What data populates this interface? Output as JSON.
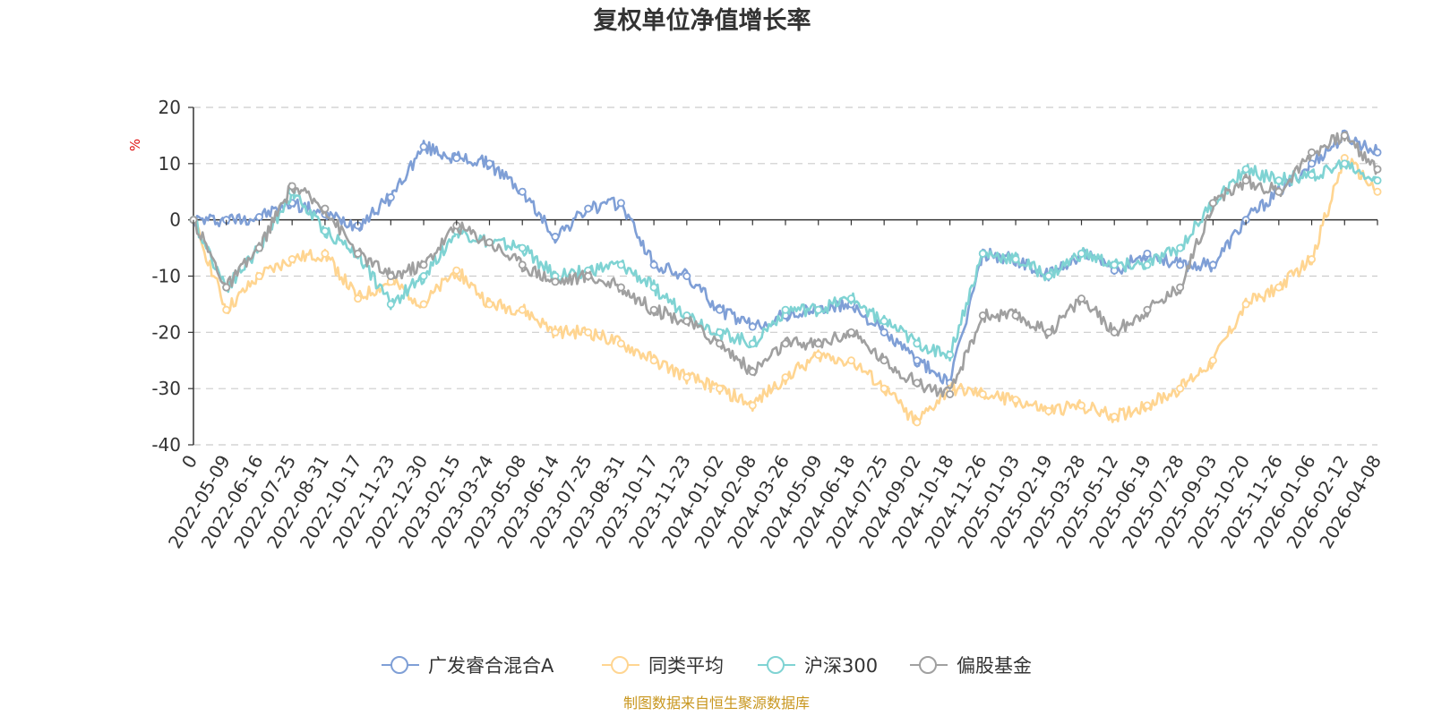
{
  "chart_data": {
    "type": "line",
    "title": "复权单位净值增长率",
    "ylabel": "%",
    "ylim": [
      -40,
      20
    ],
    "yticks": [
      "20",
      "10",
      "0",
      "-10",
      "-20",
      "-30",
      "-40"
    ],
    "x_tick_labels": [
      "0",
      "2022-05-09",
      "2022-06-16",
      "2022-07-25",
      "2022-08-31",
      "2022-10-17",
      "2022-11-23",
      "2022-12-30",
      "2023-02-15",
      "2023-03-24",
      "2023-05-08",
      "2023-06-14",
      "2023-07-25",
      "2023-08-31",
      "2023-10-17",
      "2023-11-23",
      "2024-01-02",
      "2024-02-08",
      "2024-03-26",
      "2024-05-09",
      "2024-06-18",
      "2024-07-25",
      "2024-09-02",
      "2024-10-18",
      "2024-11-26",
      "2025-01-03",
      "2025-02-19",
      "2025-03-28",
      "2025-05-12",
      "2025-06-19",
      "2025-07-28",
      "2025-09-03",
      "2025-10-20",
      "2025-11-26",
      "2026-01-06",
      "2026-02-12",
      "2026-04-08"
    ],
    "grid": true,
    "legend_position": "bottom",
    "x": [
      "0",
      "2022-05-09",
      "2022-06-16",
      "2022-07-25",
      "2022-08-31",
      "2022-10-17",
      "2022-11-23",
      "2022-12-30",
      "2023-02-15",
      "2023-03-24",
      "2023-05-08",
      "2023-06-14",
      "2023-07-25",
      "2023-08-31",
      "2023-10-17",
      "2023-11-23",
      "2024-01-02",
      "2024-02-08",
      "2024-03-26",
      "2024-05-09",
      "2024-06-18",
      "2024-07-25",
      "2024-09-02",
      "2024-10-18",
      "2024-11-26",
      "2025-01-03",
      "2025-02-19",
      "2025-03-28",
      "2025-05-12",
      "2025-06-19",
      "2025-07-28",
      "2025-09-03",
      "2025-10-20",
      "2025-11-26",
      "2026-01-06",
      "2026-02-12",
      "2026-04-08"
    ],
    "series": [
      {
        "name": "广发睿合混合A",
        "color": "#7f9fd6",
        "values": [
          0,
          0,
          0.5,
          3,
          1,
          -1,
          4,
          13,
          11,
          10,
          5,
          -3,
          2,
          3,
          -8,
          -10,
          -16,
          -19,
          -17,
          -16,
          -15,
          -20,
          -25,
          -29,
          -6,
          -7,
          -10,
          -6,
          -9,
          -6,
          -8,
          -8,
          0,
          5,
          10,
          15,
          12
        ]
      },
      {
        "name": "同类平均",
        "color": "#ffd591",
        "values": [
          0,
          -16,
          -10,
          -7,
          -6,
          -14,
          -11,
          -15,
          -9,
          -15,
          -16,
          -20,
          -20,
          -22,
          -25,
          -28,
          -30,
          -33,
          -28,
          -24,
          -25,
          -30,
          -36,
          -30,
          -31,
          -32,
          -34,
          -33,
          -35,
          -33,
          -30,
          -25,
          -15,
          -12,
          -7,
          11,
          5
        ]
      },
      {
        "name": "沪深300",
        "color": "#7fd3d3",
        "values": [
          0,
          -12,
          -5,
          5,
          -2,
          -6,
          -15,
          -10,
          -2,
          -4,
          -5,
          -10,
          -9,
          -8,
          -12,
          -17,
          -20,
          -22,
          -16,
          -16,
          -14,
          -18,
          -22,
          -24,
          -6,
          -7,
          -10,
          -6,
          -8,
          -8,
          -5,
          3,
          9,
          7,
          8,
          10,
          7
        ]
      },
      {
        "name": "偏股基金",
        "color": "#a0a0a0",
        "values": [
          0,
          -12,
          -5,
          6,
          2,
          -6,
          -10,
          -8,
          -1,
          -4,
          -8,
          -11,
          -10,
          -12,
          -16,
          -18,
          -22,
          -27,
          -22,
          -22,
          -20,
          -25,
          -29,
          -31,
          -17,
          -17,
          -20,
          -14,
          -20,
          -16,
          -12,
          3,
          7,
          5,
          12,
          15,
          9
        ]
      }
    ]
  },
  "source_text": "制图数据来自恒生聚源数据库"
}
